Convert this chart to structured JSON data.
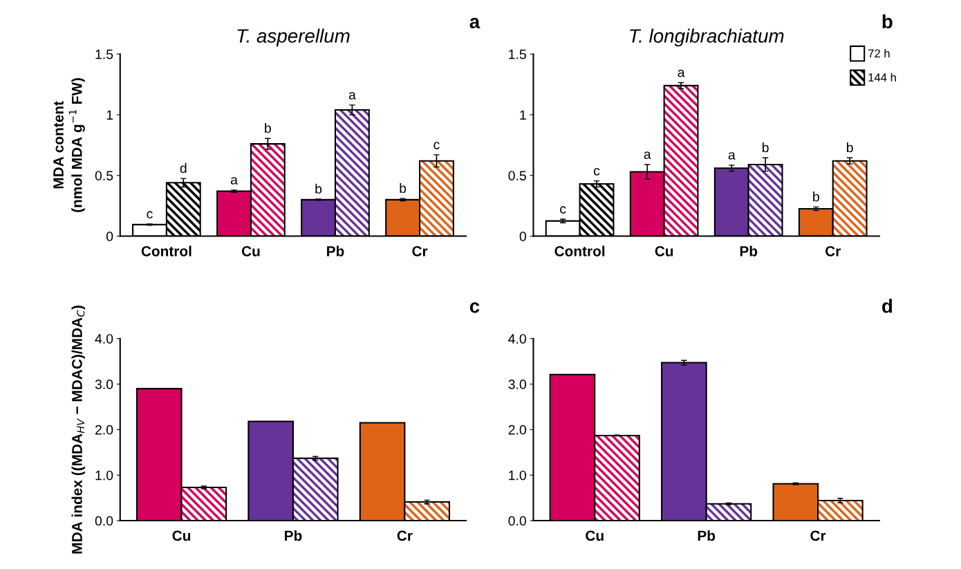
{
  "chart_data": [
    {
      "type": "bar",
      "title": "T. asperellum",
      "ylabel": "MDA content\n(nmol MDA g$^{−1}$ FW)",
      "categories": [
        "Control",
        "Cu",
        "Pb",
        "Cr"
      ],
      "ylim": [
        0,
        1.5
      ],
      "yticks": [
        0,
        0.5,
        1,
        1.5
      ],
      "grid": false,
      "legend": false,
      "series": [
        {
          "colors": [
            "#ffffff",
            "#d6005f",
            "#663399",
            "#e06418"
          ],
          "values": [
            0.095,
            0.37,
            0.3,
            0.3
          ],
          "errors": [
            0.005,
            0.01,
            0.005,
            0.01
          ]
        },
        {
          "colors": [
            "#000000",
            "#d6005f",
            "#663399",
            "#e06418"
          ],
          "values": [
            0.44,
            0.76,
            1.04,
            0.62
          ],
          "errors": [
            0.035,
            0.045,
            0.04,
            0.05
          ]
        }
      ],
      "annotations": [
        "a",
        {
          "text": "c",
          "x": "Control",
          "y": 0.095
        },
        {
          "text": "d",
          "x": "Control",
          "y": 0.44
        },
        {
          "text": "a",
          "x": "Cu",
          "y": 0.37
        },
        {
          "text": "b",
          "x": "Cu",
          "y": 0.76
        },
        {
          "text": "b",
          "x": "Pb",
          "y": 0.3
        },
        {
          "text": "a",
          "x": "Pb",
          "y": 1.04
        },
        {
          "text": "b",
          "x": "Cr",
          "y": 0.3
        },
        {
          "text": "c",
          "x": "Cr",
          "y": 0.62
        }
      ]
    },
    {
      "type": "bar",
      "title": "T. longibrachiatum",
      "categories": [
        "Control",
        "Cu",
        "Pb",
        "Cr"
      ],
      "ylim": [
        0,
        1.5
      ],
      "yticks": [
        0,
        0.5,
        1,
        1.5
      ],
      "grid": false,
      "legend": "top right",
      "series": [
        {
          "name": "72 h",
          "colors": [
            "#ffffff",
            "#d6005f",
            "#663399",
            "#e06418"
          ],
          "values": [
            0.125,
            0.53,
            0.56,
            0.225
          ],
          "errors": [
            0.015,
            0.06,
            0.025,
            0.015
          ]
        },
        {
          "name": "144 h",
          "colors": [
            "#000000",
            "#d6005f",
            "#663399",
            "#e06418"
          ],
          "values": [
            0.43,
            1.24,
            0.59,
            0.62
          ],
          "errors": [
            0.025,
            0.025,
            0.055,
            0.025
          ]
        }
      ],
      "annotations": [
        "b",
        {
          "text": "c",
          "x": "Control",
          "y": 0.125
        },
        {
          "text": "c",
          "x": "Control",
          "y": 0.43
        },
        {
          "text": "a",
          "x": "Cu",
          "y": 0.53
        },
        {
          "text": "a",
          "x": "Cu",
          "y": 1.24
        },
        {
          "text": "a",
          "x": "Pb",
          "y": 0.56
        },
        {
          "text": "b",
          "x": "Pb",
          "y": 0.59
        },
        {
          "text": "b",
          "x": "Cr",
          "y": 0.225
        },
        {
          "text": "b",
          "x": "Cr",
          "y": 0.62
        }
      ]
    },
    {
      "type": "bar",
      "ylabel": "MDA index ((MDA$_{HV}$ − MDAC)/MDA$_{C}$)",
      "categories": [
        "Cu",
        "Pb",
        "Cr"
      ],
      "ylim": [
        0,
        4
      ],
      "yticks": [
        {
          "value": 0,
          "label": "0.0"
        },
        {
          "value": 1,
          "label": "1.0"
        },
        {
          "value": 2,
          "label": "2.0"
        },
        {
          "value": 3,
          "label": "3.0"
        },
        {
          "value": 4,
          "label": "4.0"
        }
      ],
      "grid": false,
      "legend": false,
      "series": [
        {
          "colors": [
            "#d6005f",
            "#663399",
            "#e06418"
          ],
          "values": [
            2.9,
            2.18,
            2.15
          ],
          "errors": [
            null,
            null,
            null
          ]
        },
        {
          "colors": [
            "#d6005f",
            "#663399",
            "#e06418"
          ],
          "values": [
            0.73,
            1.37,
            0.41
          ],
          "errors": [
            0.03,
            0.04,
            0.04
          ]
        }
      ],
      "annotations": [
        "c"
      ]
    },
    {
      "type": "bar",
      "categories": [
        "Cu",
        "Pb",
        "Cr"
      ],
      "ylim": [
        0,
        4
      ],
      "yticks": [
        {
          "value": 0,
          "label": "0.0"
        },
        {
          "value": 1,
          "label": "1.0"
        },
        {
          "value": 2,
          "label": "2.0"
        },
        {
          "value": 3,
          "label": "3.0"
        },
        {
          "value": 4,
          "label": "4.0"
        }
      ],
      "grid": false,
      "legend": false,
      "series": [
        {
          "colors": [
            "#d6005f",
            "#663399",
            "#e06418"
          ],
          "values": [
            3.21,
            3.47,
            0.81
          ],
          "errors": [
            null,
            0.05,
            0.02
          ]
        },
        {
          "colors": [
            "#d6005f",
            "#663399",
            "#e06418"
          ],
          "values": [
            1.87,
            0.37,
            0.44
          ],
          "errors": [
            0.01,
            0.02,
            0.05
          ]
        }
      ],
      "annotations": [
        "d"
      ]
    }
  ]
}
